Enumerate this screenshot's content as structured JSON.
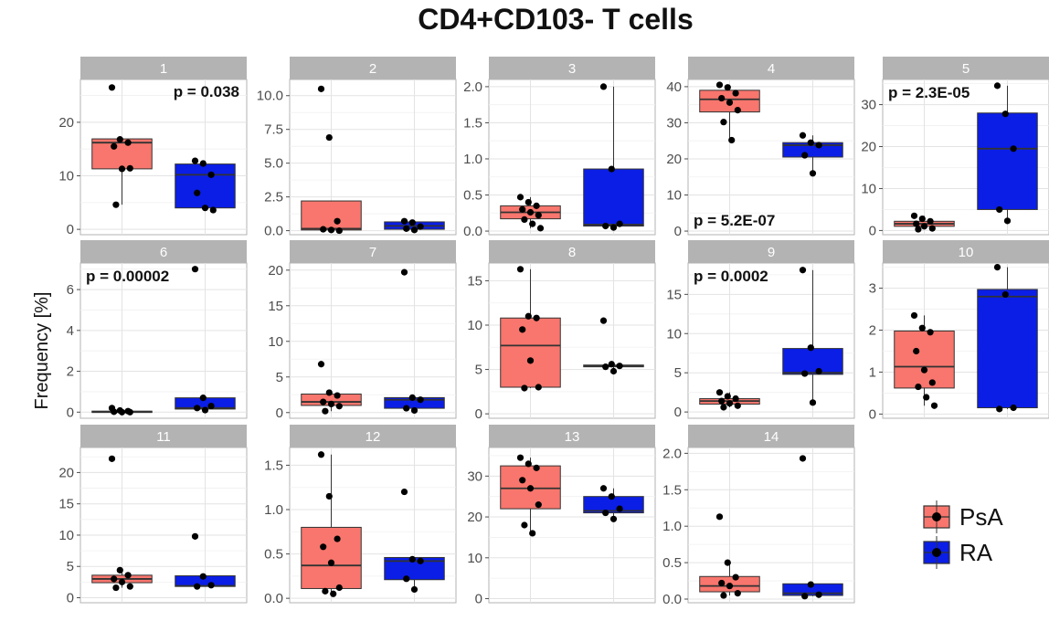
{
  "chart_data": {
    "type": "box",
    "title": "CD4+CD103- T cells",
    "ylabel": "Frequency [%]",
    "xlabel": "",
    "groups": [
      "PsA",
      "RA"
    ],
    "colors": {
      "PsA": "#f8766d",
      "RA": "#0a1ee6"
    },
    "legend": {
      "position": "right",
      "entries": [
        {
          "label": "PsA"
        },
        {
          "label": "RA"
        }
      ]
    },
    "panels": [
      {
        "label": "1",
        "ylim": [
          -1,
          28
        ],
        "yticks": [
          0,
          10,
          20
        ],
        "pvalue": "p = 0.038",
        "pvalue_pos": "top-right",
        "boxes": [
          {
            "group": "PsA",
            "q1": 11.3,
            "median": 16.2,
            "q3": 16.9,
            "whisker_low": 4.6,
            "whisker_high": 16.9,
            "points": [
              26.5,
              16.8,
              16.2,
              15.5,
              11.3,
              11.4,
              4.6
            ]
          },
          {
            "group": "RA",
            "q1": 4.0,
            "median": 10.2,
            "q3": 12.2,
            "whisker_low": 3.6,
            "whisker_high": 12.8,
            "points": [
              12.8,
              12.3,
              10.2,
              6.8,
              4.0,
              3.6
            ]
          }
        ]
      },
      {
        "label": "2",
        "ylim": [
          -0.3,
          11.2
        ],
        "yticks": [
          0.0,
          2.5,
          5.0,
          7.5,
          10.0
        ],
        "pvalue": "",
        "boxes": [
          {
            "group": "PsA",
            "q1": 0.05,
            "median": 0.15,
            "q3": 2.2,
            "whisker_low": 0.0,
            "whisker_high": 2.2,
            "points": [
              10.5,
              6.9,
              0.7,
              0.1,
              0.05,
              0.0
            ]
          },
          {
            "group": "RA",
            "q1": 0.1,
            "median": 0.35,
            "q3": 0.65,
            "whisker_low": 0.05,
            "whisker_high": 0.7,
            "points": [
              0.7,
              0.6,
              0.3,
              0.15,
              0.05
            ]
          }
        ]
      },
      {
        "label": "3",
        "ylim": [
          -0.05,
          2.1
        ],
        "yticks": [
          0.0,
          0.5,
          1.0,
          1.5,
          2.0
        ],
        "pvalue": "",
        "boxes": [
          {
            "group": "PsA",
            "q1": 0.17,
            "median": 0.26,
            "q3": 0.35,
            "whisker_low": 0.04,
            "whisker_high": 0.47,
            "points": [
              0.47,
              0.4,
              0.35,
              0.3,
              0.26,
              0.22,
              0.16,
              0.1,
              0.04
            ]
          },
          {
            "group": "RA",
            "q1": 0.07,
            "median": 0.09,
            "q3": 0.86,
            "whisker_low": 0.05,
            "whisker_high": 2.0,
            "points": [
              2.0,
              0.86,
              0.1,
              0.07,
              0.05
            ]
          }
        ]
      },
      {
        "label": "4",
        "ylim": [
          -1,
          42
        ],
        "yticks": [
          0,
          10,
          20,
          30,
          40
        ],
        "pvalue": "p = 5.2E-07",
        "pvalue_pos": "bottom-left",
        "boxes": [
          {
            "group": "PsA",
            "q1": 33,
            "median": 36.5,
            "q3": 39,
            "whisker_low": 25,
            "whisker_high": 40.5,
            "points": [
              40.5,
              39.8,
              38.2,
              36.8,
              35.6,
              33.5,
              30.2,
              25.2
            ]
          },
          {
            "group": "RA",
            "q1": 20.5,
            "median": 23.8,
            "q3": 24.5,
            "whisker_low": 16,
            "whisker_high": 26.5,
            "points": [
              26.5,
              24.5,
              23.8,
              21.0,
              16.0
            ]
          }
        ]
      },
      {
        "label": "5",
        "ylim": [
          -1,
          36
        ],
        "yticks": [
          0,
          10,
          20,
          30
        ],
        "pvalue": "p = 2.3E-05",
        "pvalue_pos": "top-left",
        "boxes": [
          {
            "group": "PsA",
            "q1": 1.0,
            "median": 1.6,
            "q3": 2.2,
            "whisker_low": 0.3,
            "whisker_high": 3.5,
            "points": [
              3.5,
              2.8,
              2.2,
              1.6,
              1.0,
              0.5,
              0.3
            ]
          },
          {
            "group": "RA",
            "q1": 5.0,
            "median": 19.5,
            "q3": 28,
            "whisker_low": 2.3,
            "whisker_high": 34.5,
            "points": [
              34.5,
              27.8,
              19.5,
              5.0,
              2.3
            ]
          }
        ]
      },
      {
        "label": "6",
        "ylim": [
          -0.3,
          7.3
        ],
        "yticks": [
          0,
          2,
          4,
          6
        ],
        "pvalue": "p = 0.00002",
        "pvalue_pos": "top-left",
        "boxes": [
          {
            "group": "PsA",
            "q1": 0.0,
            "median": 0.02,
            "q3": 0.05,
            "whisker_low": 0.0,
            "whisker_high": 0.08,
            "points": [
              0.2,
              0.08,
              0.05,
              0.02,
              0.0,
              0.0
            ]
          },
          {
            "group": "RA",
            "q1": 0.15,
            "median": 0.2,
            "q3": 0.7,
            "whisker_low": 0.1,
            "whisker_high": 0.7,
            "points": [
              7.0,
              0.7,
              0.3,
              0.2,
              0.1
            ]
          }
        ]
      },
      {
        "label": "7",
        "ylim": [
          -0.8,
          21
        ],
        "yticks": [
          0,
          5,
          10,
          15,
          20
        ],
        "pvalue": "",
        "boxes": [
          {
            "group": "PsA",
            "q1": 1.0,
            "median": 1.5,
            "q3": 2.6,
            "whisker_low": 0.2,
            "whisker_high": 2.8,
            "points": [
              6.8,
              2.8,
              2.4,
              1.5,
              1.2,
              0.9,
              0.2
            ]
          },
          {
            "group": "RA",
            "q1": 0.6,
            "median": 1.8,
            "q3": 2.1,
            "whisker_low": 0.3,
            "whisker_high": 2.2,
            "points": [
              19.7,
              2.1,
              1.8,
              0.6,
              0.3
            ]
          }
        ]
      },
      {
        "label": "8",
        "ylim": [
          -0.5,
          17
        ],
        "yticks": [
          0,
          5,
          10,
          15
        ],
        "pvalue": "",
        "boxes": [
          {
            "group": "PsA",
            "q1": 3.0,
            "median": 7.7,
            "q3": 10.8,
            "whisker_low": 2.9,
            "whisker_high": 16.3,
            "points": [
              16.3,
              11.0,
              10.8,
              9.5,
              6.0,
              3.0,
              2.9
            ]
          },
          {
            "group": "RA",
            "q1": 5.3,
            "median": 5.4,
            "q3": 5.5,
            "whisker_low": 4.8,
            "whisker_high": 5.6,
            "points": [
              10.5,
              5.6,
              5.4,
              5.3,
              4.8
            ]
          }
        ]
      },
      {
        "label": "9",
        "ylim": [
          -0.8,
          19
        ],
        "yticks": [
          0,
          5,
          10,
          15
        ],
        "pvalue": "p = 0.0002",
        "pvalue_pos": "top-left",
        "boxes": [
          {
            "group": "PsA",
            "q1": 1.0,
            "median": 1.4,
            "q3": 1.7,
            "whisker_low": 0.6,
            "whisker_high": 2.5,
            "points": [
              2.5,
              2.0,
              1.7,
              1.4,
              1.1,
              0.8,
              0.6
            ]
          },
          {
            "group": "RA",
            "q1": 4.8,
            "median": 5.0,
            "q3": 8.1,
            "whisker_low": 1.2,
            "whisker_high": 18.1,
            "points": [
              18.1,
              8.2,
              5.2,
              4.9,
              1.2
            ]
          }
        ]
      },
      {
        "label": "10",
        "ylim": [
          -0.1,
          3.6
        ],
        "yticks": [
          0,
          1,
          2,
          3
        ],
        "pvalue": "",
        "boxes": [
          {
            "group": "PsA",
            "q1": 0.62,
            "median": 1.13,
            "q3": 1.98,
            "whisker_low": 0.2,
            "whisker_high": 2.35,
            "points": [
              2.35,
              2.05,
              1.95,
              1.5,
              1.05,
              0.75,
              0.65,
              0.4,
              0.2
            ]
          },
          {
            "group": "RA",
            "q1": 0.15,
            "median": 2.8,
            "q3": 2.97,
            "whisker_low": 0.12,
            "whisker_high": 3.5,
            "points": [
              3.5,
              2.85,
              0.15,
              0.12
            ]
          }
        ]
      },
      {
        "label": "11",
        "ylim": [
          -0.8,
          24
        ],
        "yticks": [
          0,
          5,
          10,
          15,
          20
        ],
        "pvalue": "",
        "boxes": [
          {
            "group": "PsA",
            "q1": 2.4,
            "median": 3.0,
            "q3": 3.6,
            "whisker_low": 1.6,
            "whisker_high": 4.3,
            "points": [
              22.2,
              4.4,
              3.6,
              3.0,
              2.5,
              1.8,
              1.6
            ]
          },
          {
            "group": "RA",
            "q1": 1.8,
            "median": 1.9,
            "q3": 3.5,
            "whisker_low": 1.8,
            "whisker_high": 3.5,
            "points": [
              9.8,
              3.4,
              2.0,
              1.8
            ]
          }
        ]
      },
      {
        "label": "12",
        "ylim": [
          -0.05,
          1.7
        ],
        "yticks": [
          0.0,
          0.5,
          1.0,
          1.5
        ],
        "pvalue": "",
        "boxes": [
          {
            "group": "PsA",
            "q1": 0.11,
            "median": 0.37,
            "q3": 0.8,
            "whisker_low": 0.05,
            "whisker_high": 1.62,
            "points": [
              1.62,
              1.15,
              0.67,
              0.58,
              0.4,
              0.12,
              0.08,
              0.05
            ]
          },
          {
            "group": "RA",
            "q1": 0.21,
            "median": 0.42,
            "q3": 0.46,
            "whisker_low": 0.1,
            "whisker_high": 0.46,
            "points": [
              1.2,
              0.44,
              0.42,
              0.22,
              0.1
            ]
          }
        ]
      },
      {
        "label": "13",
        "ylim": [
          -1,
          37
        ],
        "yticks": [
          0,
          10,
          20,
          30
        ],
        "pvalue": "",
        "boxes": [
          {
            "group": "PsA",
            "q1": 22,
            "median": 27,
            "q3": 32.5,
            "whisker_low": 15.8,
            "whisker_high": 34.5,
            "points": [
              34.5,
              33.0,
              32.0,
              29.0,
              27.0,
              23.0,
              18.0,
              16.0
            ]
          },
          {
            "group": "RA",
            "q1": 21,
            "median": 21.5,
            "q3": 25,
            "whisker_low": 19.5,
            "whisker_high": 27,
            "points": [
              27.0,
              25.0,
              22.0,
              21.0,
              19.5
            ]
          }
        ]
      },
      {
        "label": "14",
        "ylim": [
          -0.05,
          2.08
        ],
        "yticks": [
          0.0,
          0.5,
          1.0,
          1.5,
          2.0
        ],
        "pvalue": "",
        "boxes": [
          {
            "group": "PsA",
            "q1": 0.1,
            "median": 0.18,
            "q3": 0.31,
            "whisker_low": 0.05,
            "whisker_high": 0.5,
            "points": [
              1.13,
              0.5,
              0.3,
              0.22,
              0.18,
              0.08,
              0.05
            ]
          },
          {
            "group": "RA",
            "q1": 0.05,
            "median": 0.08,
            "q3": 0.21,
            "whisker_low": 0.04,
            "whisker_high": 0.21,
            "points": [
              1.93,
              0.2,
              0.06,
              0.04
            ]
          }
        ]
      }
    ]
  }
}
